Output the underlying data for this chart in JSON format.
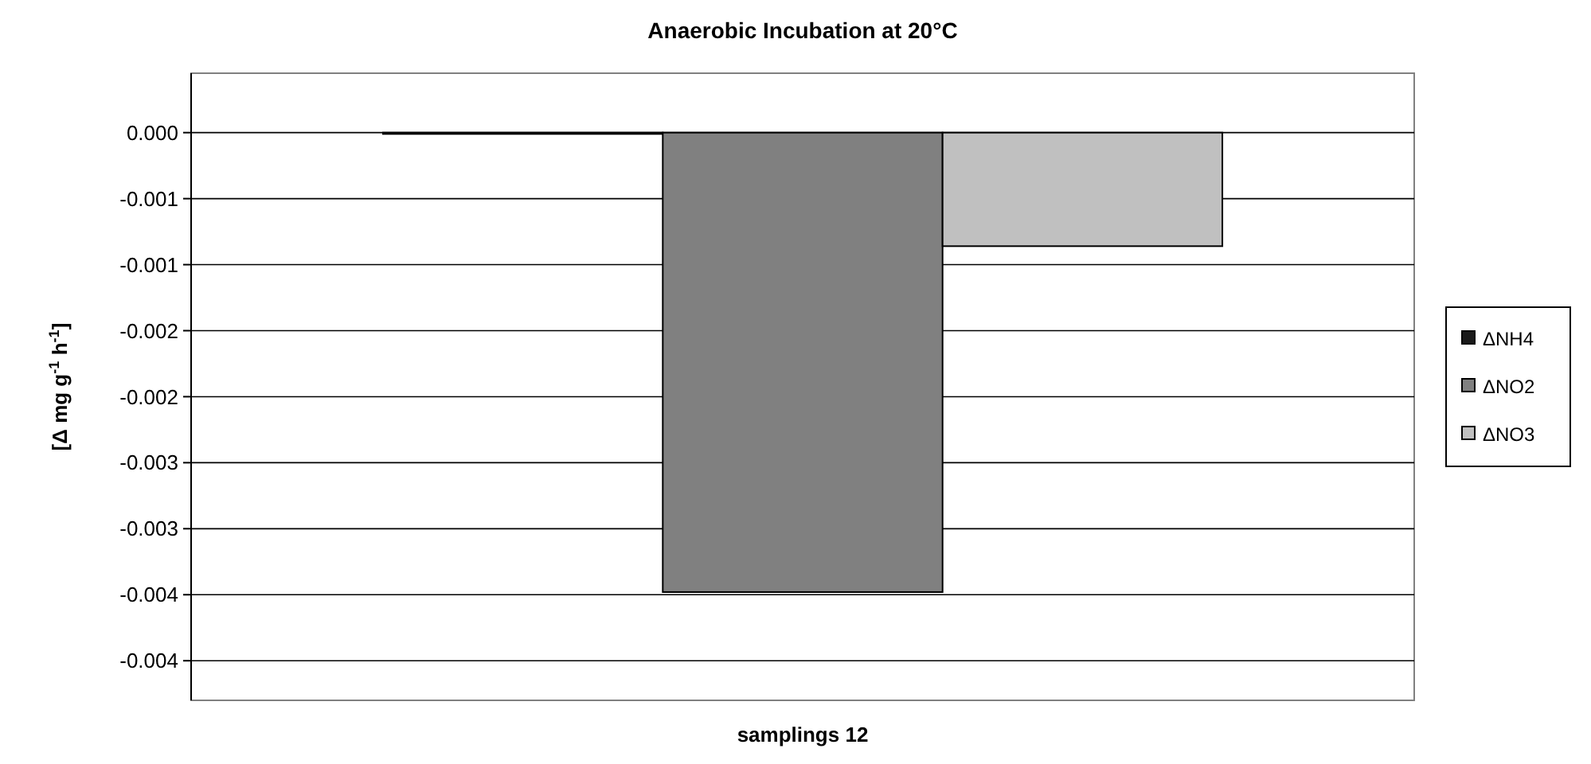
{
  "chart_data": {
    "type": "bar",
    "title": "Anaerobic Incubation at 20°C",
    "xlabel": "samplings 12",
    "ylabel": "[Δ mg g$^{-1}$ h$^{-1}$]",
    "categories": [
      null
    ],
    "series": [
      {
        "name": "ΔNH4",
        "color": "#1a1a1a",
        "values": [
          -1e-05
        ]
      },
      {
        "name": "ΔNO2",
        "color": "#808080",
        "values": [
          -0.00348
        ]
      },
      {
        "name": "ΔNO3",
        "color": "#c0c0c0",
        "values": [
          -0.00086
        ]
      }
    ],
    "ylim": [
      -0.0043,
      0.00045
    ],
    "yticks": [
      {
        "value": 0,
        "label": "0.000"
      },
      {
        "value": -0.0005,
        "label": "-0.001"
      },
      {
        "value": -0.001,
        "label": "-0.001"
      },
      {
        "value": -0.0015,
        "label": "-0.002"
      },
      {
        "value": -0.002,
        "label": "-0.002"
      },
      {
        "value": -0.0025,
        "label": "-0.003"
      },
      {
        "value": -0.003,
        "label": "-0.003"
      },
      {
        "value": -0.0035,
        "label": "-0.004"
      },
      {
        "value": -0.004,
        "label": "-0.004"
      }
    ],
    "grid": "y",
    "legend": "right"
  }
}
